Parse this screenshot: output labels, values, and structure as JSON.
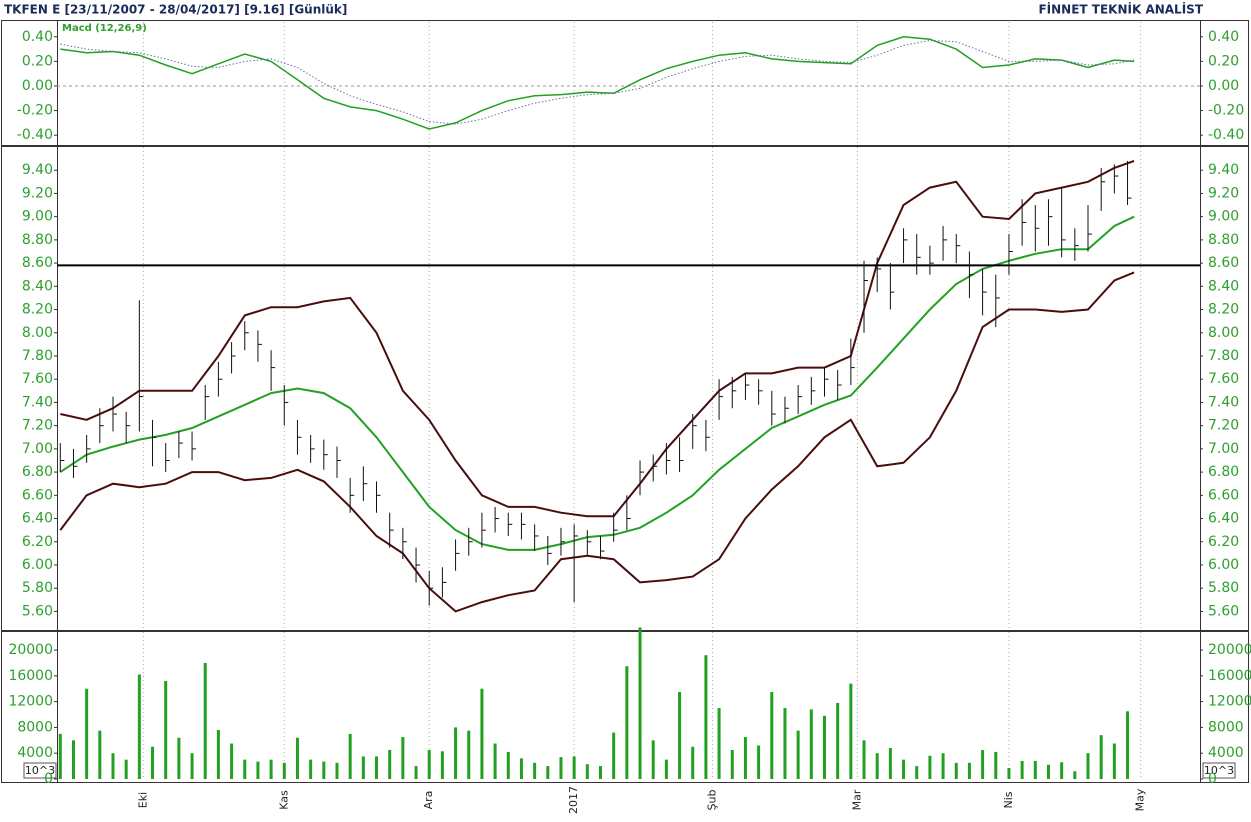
{
  "header": {
    "left": "TKFEN E  [23/11/2007 - 28/04/2017]  [9.16]  [Günlük]",
    "right": "FİNNET TEKNİK ANALİST"
  },
  "chart_data": [
    {
      "type": "line",
      "title": "Macd (12,26,9)",
      "x": [
        0,
        4,
        8,
        12,
        16,
        20,
        24,
        28,
        32,
        36,
        40,
        44,
        48,
        52,
        56,
        60,
        64,
        68,
        72,
        76,
        80,
        84,
        88,
        92,
        96,
        100,
        104,
        108,
        112,
        116,
        120,
        124,
        128,
        132,
        136,
        140,
        144,
        148,
        152,
        156,
        160,
        163
      ],
      "series": [
        {
          "color": "#22a022",
          "style": "solid",
          "values": [
            0.3,
            0.27,
            0.28,
            0.25,
            0.17,
            0.1,
            0.18,
            0.26,
            0.2,
            0.05,
            -0.1,
            -0.17,
            -0.2,
            -0.27,
            -0.35,
            -0.3,
            -0.2,
            -0.12,
            -0.08,
            -0.07,
            -0.05,
            -0.06,
            0.05,
            0.14,
            0.2,
            0.25,
            0.27,
            0.22,
            0.2,
            0.19,
            0.18,
            0.33,
            0.4,
            0.38,
            0.3,
            0.15,
            0.17,
            0.22,
            0.21,
            0.15,
            0.21,
            0.2
          ]
        },
        {
          "color": "#6a6aa8",
          "style": "dotted",
          "values": [
            0.34,
            0.3,
            0.28,
            0.27,
            0.22,
            0.16,
            0.15,
            0.2,
            0.22,
            0.15,
            0.02,
            -0.08,
            -0.15,
            -0.21,
            -0.29,
            -0.31,
            -0.27,
            -0.2,
            -0.14,
            -0.1,
            -0.07,
            -0.06,
            -0.02,
            0.07,
            0.14,
            0.2,
            0.24,
            0.25,
            0.22,
            0.2,
            0.19,
            0.25,
            0.33,
            0.37,
            0.36,
            0.28,
            0.2,
            0.2,
            0.21,
            0.17,
            0.18,
            0.21
          ]
        }
      ],
      "xlim": [
        -0.5,
        173
      ],
      "ylim": [
        -0.48,
        0.52
      ],
      "yticks": [
        {
          "value": -0.4,
          "label": "-0.40"
        },
        {
          "value": -0.2,
          "label": "-0.20"
        },
        {
          "value": 0,
          "label": "0.00"
        },
        {
          "value": 0.2,
          "label": "0.20"
        },
        {
          "value": 0.4,
          "label": "0.40"
        }
      ],
      "zero_line": true
    },
    {
      "type": "ohlc",
      "color": "#111111",
      "x": [
        0,
        2,
        4,
        6,
        8,
        10,
        12,
        14,
        16,
        18,
        20,
        22,
        24,
        26,
        28,
        30,
        32,
        34,
        36,
        38,
        40,
        42,
        44,
        46,
        48,
        50,
        52,
        54,
        56,
        58,
        60,
        62,
        64,
        66,
        68,
        70,
        72,
        74,
        76,
        78,
        80,
        82,
        84,
        86,
        88,
        90,
        92,
        94,
        96,
        98,
        100,
        102,
        104,
        106,
        108,
        110,
        112,
        114,
        116,
        118,
        120,
        122,
        124,
        126,
        128,
        130,
        132,
        134,
        136,
        138,
        140,
        142,
        144,
        146,
        148,
        150,
        152,
        154,
        156,
        158,
        160,
        162
      ],
      "high": [
        7.05,
        7.0,
        7.12,
        7.35,
        7.45,
        7.32,
        8.28,
        7.25,
        7.05,
        7.15,
        7.15,
        7.55,
        7.75,
        7.92,
        8.1,
        8.02,
        7.85,
        7.55,
        7.25,
        7.12,
        7.08,
        7.02,
        6.75,
        6.85,
        6.72,
        6.45,
        6.32,
        6.15,
        5.95,
        5.98,
        6.22,
        6.32,
        6.45,
        6.5,
        6.45,
        6.45,
        6.35,
        6.25,
        6.32,
        6.35,
        6.3,
        6.25,
        6.45,
        6.6,
        6.9,
        6.95,
        7.05,
        7.1,
        7.3,
        7.25,
        7.6,
        7.62,
        7.65,
        7.6,
        7.5,
        7.45,
        7.55,
        7.62,
        7.7,
        7.68,
        7.95,
        8.62,
        8.65,
        8.6,
        8.9,
        8.85,
        8.75,
        8.92,
        8.85,
        8.7,
        8.55,
        8.5,
        8.85,
        9.15,
        9.1,
        9.15,
        9.25,
        8.9,
        9.1,
        9.42,
        9.45,
        9.48
      ],
      "low": [
        6.8,
        6.75,
        6.88,
        7.05,
        7.15,
        7.05,
        7.15,
        6.85,
        6.8,
        6.92,
        6.9,
        7.25,
        7.45,
        7.65,
        7.85,
        7.75,
        7.5,
        7.2,
        6.95,
        6.88,
        6.82,
        6.75,
        6.45,
        6.55,
        6.45,
        6.15,
        6.05,
        5.85,
        5.65,
        5.72,
        5.95,
        6.08,
        6.15,
        6.28,
        6.25,
        6.22,
        6.12,
        6.0,
        6.08,
        5.68,
        6.08,
        6.05,
        6.2,
        6.3,
        6.6,
        6.72,
        6.78,
        6.8,
        7.0,
        6.98,
        7.25,
        7.35,
        7.42,
        7.38,
        7.2,
        7.22,
        7.3,
        7.38,
        7.45,
        7.42,
        7.55,
        8.0,
        8.35,
        8.2,
        8.6,
        8.5,
        8.5,
        8.62,
        8.6,
        8.3,
        8.15,
        8.05,
        8.5,
        8.75,
        8.7,
        8.75,
        8.65,
        8.62,
        8.7,
        9.05,
        9.2,
        9.1
      ],
      "close": [
        6.9,
        6.85,
        7.0,
        7.2,
        7.3,
        7.2,
        7.45,
        7.1,
        6.9,
        7.05,
        7.0,
        7.45,
        7.6,
        7.8,
        8.0,
        7.9,
        7.7,
        7.4,
        7.1,
        7.0,
        6.95,
        6.9,
        6.6,
        6.7,
        6.6,
        6.3,
        6.2,
        6.0,
        5.8,
        5.85,
        6.1,
        6.2,
        6.3,
        6.4,
        6.35,
        6.35,
        6.25,
        6.1,
        6.2,
        6.25,
        6.2,
        6.12,
        6.3,
        6.4,
        6.8,
        6.85,
        6.9,
        6.9,
        7.2,
        7.1,
        7.45,
        7.5,
        7.55,
        7.5,
        7.3,
        7.35,
        7.45,
        7.5,
        7.6,
        7.55,
        7.7,
        8.45,
        8.55,
        8.35,
        8.8,
        8.65,
        8.6,
        8.8,
        8.75,
        8.5,
        8.35,
        8.3,
        8.7,
        8.95,
        8.9,
        9.0,
        8.8,
        8.75,
        8.85,
        9.3,
        9.35,
        9.16
      ],
      "overlay": {
        "x": [
          0,
          4,
          8,
          12,
          16,
          20,
          24,
          28,
          32,
          36,
          40,
          44,
          48,
          52,
          56,
          60,
          64,
          68,
          72,
          76,
          80,
          84,
          88,
          92,
          96,
          100,
          104,
          108,
          112,
          116,
          120,
          124,
          128,
          132,
          136,
          140,
          144,
          148,
          152,
          156,
          160,
          163
        ],
        "series": [
          {
            "color": "#4a0d0d",
            "values": [
              7.3,
              7.25,
              7.35,
              7.5,
              7.5,
              7.5,
              7.8,
              8.15,
              8.22,
              8.22,
              8.27,
              8.3,
              8.0,
              7.5,
              7.25,
              6.9,
              6.6,
              6.5,
              6.5,
              6.45,
              6.42,
              6.42,
              6.7,
              7.0,
              7.25,
              7.5,
              7.65,
              7.65,
              7.7,
              7.7,
              7.8,
              8.6,
              9.1,
              9.25,
              9.3,
              9.0,
              8.98,
              9.2,
              9.25,
              9.3,
              9.42,
              9.48
            ]
          },
          {
            "color": "#22a022",
            "values": [
              6.8,
              6.95,
              7.02,
              7.08,
              7.12,
              7.18,
              7.28,
              7.38,
              7.48,
              7.52,
              7.48,
              7.35,
              7.1,
              6.8,
              6.5,
              6.3,
              6.18,
              6.13,
              6.13,
              6.18,
              6.24,
              6.26,
              6.32,
              6.45,
              6.6,
              6.82,
              7.0,
              7.18,
              7.28,
              7.38,
              7.46,
              7.7,
              7.95,
              8.2,
              8.42,
              8.55,
              8.62,
              8.68,
              8.72,
              8.72,
              8.92,
              9.0
            ]
          },
          {
            "color": "#4a0d0d",
            "values": [
              6.3,
              6.6,
              6.7,
              6.67,
              6.7,
              6.8,
              6.8,
              6.73,
              6.75,
              6.82,
              6.72,
              6.5,
              6.25,
              6.1,
              5.8,
              5.6,
              5.68,
              5.74,
              5.78,
              6.05,
              6.08,
              6.05,
              5.85,
              5.87,
              5.9,
              6.05,
              6.4,
              6.65,
              6.85,
              7.1,
              7.25,
              6.85,
              6.88,
              7.1,
              7.5,
              8.05,
              8.2,
              8.2,
              8.18,
              8.2,
              8.45,
              8.52
            ]
          }
        ]
      },
      "reference_line": 8.58,
      "xlim": [
        -0.5,
        173
      ],
      "ylim": [
        5.44,
        9.6
      ],
      "yticks": [
        {
          "value": 5.6,
          "label": "5.60"
        },
        {
          "value": 5.8,
          "label": "5.80"
        },
        {
          "value": 6.0,
          "label": "6.00"
        },
        {
          "value": 6.2,
          "label": "6.20"
        },
        {
          "value": 6.4,
          "label": "6.40"
        },
        {
          "value": 6.6,
          "label": "6.60"
        },
        {
          "value": 6.8,
          "label": "6.80"
        },
        {
          "value": 7.0,
          "label": "7.00"
        },
        {
          "value": 7.2,
          "label": "7.20"
        },
        {
          "value": 7.4,
          "label": "7.40"
        },
        {
          "value": 7.6,
          "label": "7.60"
        },
        {
          "value": 7.8,
          "label": "7.80"
        },
        {
          "value": 8.0,
          "label": "8.00"
        },
        {
          "value": 8.2,
          "label": "8.20"
        },
        {
          "value": 8.4,
          "label": "8.40"
        },
        {
          "value": 8.6,
          "label": "8.60"
        },
        {
          "value": 8.8,
          "label": "8.80"
        },
        {
          "value": 9.0,
          "label": "9.00"
        },
        {
          "value": 9.2,
          "label": "9.20"
        },
        {
          "value": 9.4,
          "label": "9.40"
        }
      ]
    },
    {
      "type": "bar",
      "color": "#22a022",
      "unit_label": "10^3",
      "x": [
        0,
        2,
        4,
        6,
        8,
        10,
        12,
        14,
        16,
        18,
        20,
        22,
        24,
        26,
        28,
        30,
        32,
        34,
        36,
        38,
        40,
        42,
        44,
        46,
        48,
        50,
        52,
        54,
        56,
        58,
        60,
        62,
        64,
        66,
        68,
        70,
        72,
        74,
        76,
        78,
        80,
        82,
        84,
        86,
        88,
        90,
        92,
        94,
        96,
        98,
        100,
        102,
        104,
        106,
        108,
        110,
        112,
        114,
        116,
        118,
        120,
        122,
        124,
        126,
        128,
        130,
        132,
        134,
        136,
        138,
        140,
        142,
        144,
        146,
        148,
        150,
        152,
        154,
        156,
        158,
        160,
        162
      ],
      "values": [
        7000,
        6000,
        14000,
        7500,
        4000,
        3000,
        16200,
        5000,
        15200,
        6400,
        4000,
        18000,
        7600,
        5500,
        3000,
        2700,
        3000,
        2500,
        6400,
        3000,
        2700,
        2500,
        7000,
        3500,
        3500,
        4500,
        6500,
        2000,
        4500,
        4300,
        8000,
        7500,
        14000,
        5500,
        4200,
        3200,
        2500,
        2000,
        3400,
        3500,
        2300,
        2000,
        7200,
        17500,
        23500,
        6000,
        3000,
        13500,
        5000,
        19200,
        11000,
        4500,
        6500,
        5200,
        13500,
        11000,
        7500,
        10800,
        9800,
        11800,
        14800,
        6000,
        4000,
        4800,
        3000,
        2000,
        3600,
        4000,
        2500,
        2500,
        4500,
        4200,
        1700,
        2800,
        2800,
        2200,
        2600,
        1200,
        4000,
        6800,
        5500,
        10500
      ],
      "xlim": [
        -0.5,
        173
      ],
      "ylim": [
        0,
        22800
      ],
      "yticks": [
        0,
        4000,
        8000,
        12000,
        16000,
        20000
      ],
      "xticks": [
        {
          "value": 12.6,
          "label": "Eki"
        },
        {
          "value": 34,
          "label": "Kas"
        },
        {
          "value": 56,
          "label": "Ara"
        },
        {
          "value": 78,
          "label": "2017"
        },
        {
          "value": 99,
          "label": "Şub"
        },
        {
          "value": 121,
          "label": "Mar"
        },
        {
          "value": 144,
          "label": "Nis"
        },
        {
          "value": 164,
          "label": "May"
        }
      ]
    }
  ]
}
